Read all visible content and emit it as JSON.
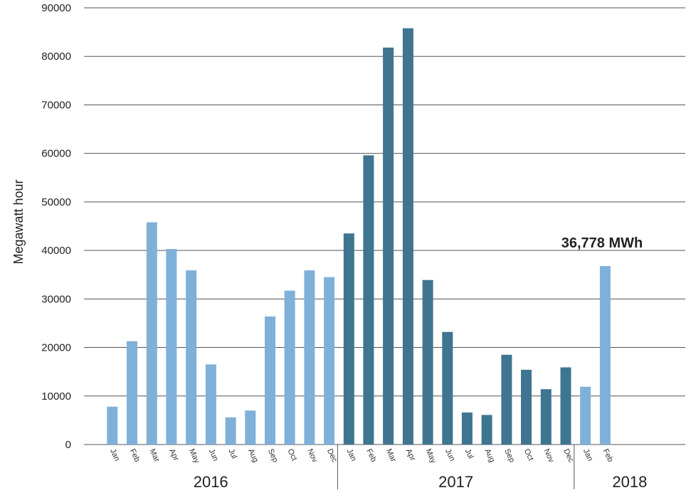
{
  "chart_data": {
    "type": "bar",
    "title": "",
    "xlabel": "",
    "ylabel": "Megawatt hour",
    "ylim": [
      0,
      90000
    ],
    "yticks": [
      0,
      10000,
      20000,
      30000,
      40000,
      50000,
      60000,
      70000,
      80000,
      90000
    ],
    "grid": true,
    "categories": [
      {
        "month": "Jan",
        "year": "2016"
      },
      {
        "month": "Feb",
        "year": "2016"
      },
      {
        "month": "Mar",
        "year": "2016"
      },
      {
        "month": "Apr",
        "year": "2016"
      },
      {
        "month": "May",
        "year": "2016"
      },
      {
        "month": "Jun",
        "year": "2016"
      },
      {
        "month": "Jul",
        "year": "2016"
      },
      {
        "month": "Aug",
        "year": "2016"
      },
      {
        "month": "Sep",
        "year": "2016"
      },
      {
        "month": "Oct",
        "year": "2016"
      },
      {
        "month": "Nov",
        "year": "2016"
      },
      {
        "month": "Dec",
        "year": "2016"
      },
      {
        "month": "Jan",
        "year": "2017"
      },
      {
        "month": "Feb",
        "year": "2017"
      },
      {
        "month": "Mar",
        "year": "2017"
      },
      {
        "month": "Apr",
        "year": "2017"
      },
      {
        "month": "May",
        "year": "2017"
      },
      {
        "month": "Jun",
        "year": "2017"
      },
      {
        "month": "Jul",
        "year": "2017"
      },
      {
        "month": "Aug",
        "year": "2017"
      },
      {
        "month": "Sep",
        "year": "2017"
      },
      {
        "month": "Oct",
        "year": "2017"
      },
      {
        "month": "Nov",
        "year": "2017"
      },
      {
        "month": "Dec",
        "year": "2017"
      },
      {
        "month": "Jan",
        "year": "2018"
      },
      {
        "month": "Feb",
        "year": "2018"
      }
    ],
    "values": [
      7800,
      21300,
      45800,
      40300,
      35900,
      16500,
      5600,
      7000,
      26400,
      31700,
      35900,
      34500,
      43500,
      59600,
      81800,
      85800,
      33900,
      23200,
      6600,
      6100,
      18500,
      15400,
      11400,
      15900,
      11900,
      36778
    ],
    "year_groups": [
      {
        "label": "2016"
      },
      {
        "label": "2017"
      },
      {
        "label": "2018"
      }
    ],
    "colors": {
      "2016": "#7fb0da",
      "2017": "#3f7591",
      "2018": "#7fb0da"
    },
    "annotation": {
      "text": "36,778 MWh"
    }
  }
}
